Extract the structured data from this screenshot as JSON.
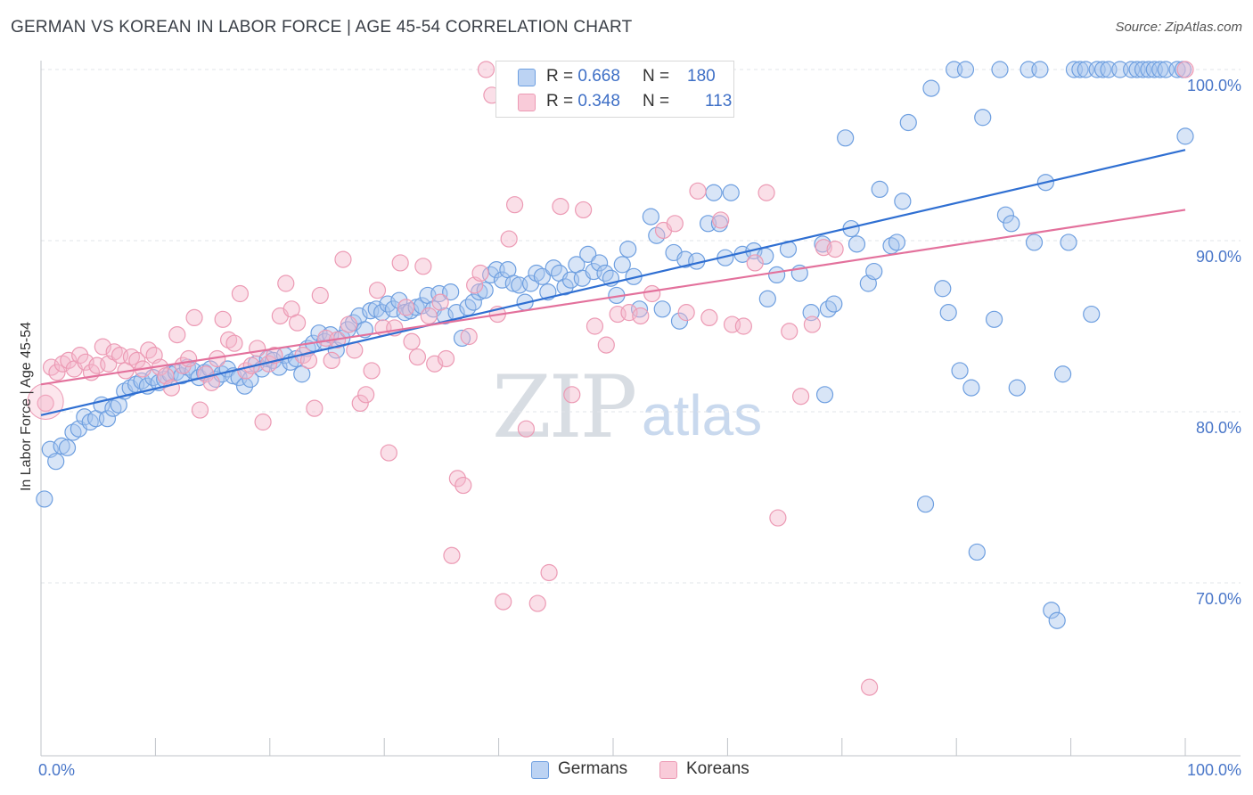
{
  "title": "GERMAN VS KOREAN IN LABOR FORCE | AGE 45-54 CORRELATION CHART",
  "source": "Source: ZipAtlas.com",
  "watermark": {
    "zip": "ZIP",
    "atlas": "atlas"
  },
  "legend": {
    "r_label": "R =",
    "n_label": "N =",
    "germans": {
      "r": "0.668",
      "n": "180",
      "color": "#a9c6ee"
    },
    "koreans": {
      "r": "0.348",
      "n": "113",
      "color": "#f5b8cb"
    }
  },
  "bottom_legend": {
    "germans": "Germans",
    "koreans": "Koreans"
  },
  "chart_data": {
    "type": "scatter",
    "xlabel": "",
    "ylabel": "In Labor Force | Age 45-54",
    "x_tick_labels": [
      "0.0%",
      "100.0%"
    ],
    "y_tick_labels": [
      "70.0%",
      "80.0%",
      "90.0%",
      "100.0%"
    ],
    "y_ticks": [
      70,
      80,
      90,
      100
    ],
    "xlim": [
      0,
      100
    ],
    "ylim": [
      60,
      100
    ],
    "grid": true,
    "legend_position": "top-center",
    "series": [
      {
        "name": "Germans",
        "color": "#6e9fe0",
        "fill": "#a9c6ee",
        "trend": {
          "x": [
            0,
            100
          ],
          "y": [
            79.8,
            95.3
          ],
          "color": "#2f6fd2"
        },
        "points": [
          [
            0.3,
            74.9
          ],
          [
            0.8,
            77.8
          ],
          [
            1.3,
            77.1
          ],
          [
            1.8,
            78.0
          ],
          [
            2.3,
            77.9
          ],
          [
            2.8,
            78.8
          ],
          [
            3.3,
            79.0
          ],
          [
            3.8,
            79.7
          ],
          [
            4.3,
            79.4
          ],
          [
            4.8,
            79.6
          ],
          [
            5.3,
            80.4
          ],
          [
            5.8,
            79.6
          ],
          [
            6.3,
            80.2
          ],
          [
            6.8,
            80.4
          ],
          [
            7.3,
            81.2
          ],
          [
            7.8,
            81.4
          ],
          [
            8.3,
            81.6
          ],
          [
            8.8,
            81.8
          ],
          [
            9.3,
            81.5
          ],
          [
            9.8,
            82.0
          ],
          [
            10.3,
            81.7
          ],
          [
            10.8,
            81.9
          ],
          [
            11.3,
            82.2
          ],
          [
            11.8,
            82.3
          ],
          [
            12.3,
            82.1
          ],
          [
            12.8,
            82.6
          ],
          [
            13.3,
            82.4
          ],
          [
            13.8,
            82.0
          ],
          [
            14.3,
            82.3
          ],
          [
            14.8,
            82.5
          ],
          [
            15.3,
            81.9
          ],
          [
            15.8,
            82.2
          ],
          [
            16.3,
            82.5
          ],
          [
            16.8,
            82.1
          ],
          [
            17.3,
            82.0
          ],
          [
            17.8,
            81.5
          ],
          [
            18.3,
            81.9
          ],
          [
            18.8,
            82.8
          ],
          [
            19.3,
            82.5
          ],
          [
            19.8,
            83.1
          ],
          [
            20.3,
            83.0
          ],
          [
            20.8,
            82.6
          ],
          [
            21.3,
            83.3
          ],
          [
            21.8,
            82.9
          ],
          [
            22.3,
            83.1
          ],
          [
            22.8,
            82.2
          ],
          [
            23.3,
            83.7
          ],
          [
            23.8,
            84.0
          ],
          [
            24.3,
            84.6
          ],
          [
            24.8,
            84.1
          ],
          [
            25.3,
            84.5
          ],
          [
            25.8,
            83.6
          ],
          [
            26.3,
            84.3
          ],
          [
            26.8,
            84.8
          ],
          [
            27.3,
            85.2
          ],
          [
            27.8,
            85.6
          ],
          [
            28.3,
            84.8
          ],
          [
            28.8,
            85.9
          ],
          [
            29.3,
            86.0
          ],
          [
            29.8,
            85.8
          ],
          [
            30.3,
            86.3
          ],
          [
            30.8,
            86.0
          ],
          [
            31.3,
            86.5
          ],
          [
            31.8,
            85.8
          ],
          [
            32.3,
            85.9
          ],
          [
            32.8,
            86.1
          ],
          [
            33.3,
            86.2
          ],
          [
            33.8,
            86.8
          ],
          [
            34.3,
            86.0
          ],
          [
            34.8,
            86.9
          ],
          [
            35.3,
            85.6
          ],
          [
            35.8,
            87.0
          ],
          [
            36.3,
            85.8
          ],
          [
            36.8,
            84.3
          ],
          [
            37.3,
            86.1
          ],
          [
            37.8,
            86.4
          ],
          [
            38.3,
            87.0
          ],
          [
            38.8,
            87.1
          ],
          [
            39.3,
            88.0
          ],
          [
            39.8,
            88.3
          ],
          [
            40.3,
            87.7
          ],
          [
            40.8,
            88.3
          ],
          [
            41.3,
            87.5
          ],
          [
            41.8,
            87.4
          ],
          [
            42.3,
            86.4
          ],
          [
            42.8,
            87.5
          ],
          [
            43.3,
            88.1
          ],
          [
            43.8,
            87.9
          ],
          [
            44.3,
            87.0
          ],
          [
            44.8,
            88.4
          ],
          [
            45.3,
            88.1
          ],
          [
            45.8,
            87.3
          ],
          [
            46.3,
            87.7
          ],
          [
            46.8,
            88.6
          ],
          [
            47.3,
            87.8
          ],
          [
            47.8,
            89.2
          ],
          [
            48.3,
            88.2
          ],
          [
            48.8,
            88.7
          ],
          [
            49.3,
            88.1
          ],
          [
            49.8,
            87.8
          ],
          [
            50.3,
            86.8
          ],
          [
            50.8,
            88.6
          ],
          [
            51.3,
            89.5
          ],
          [
            51.8,
            87.9
          ],
          [
            52.3,
            86.0
          ],
          [
            53.3,
            91.4
          ],
          [
            53.8,
            90.3
          ],
          [
            54.3,
            86.0
          ],
          [
            55.3,
            89.3
          ],
          [
            55.8,
            85.3
          ],
          [
            56.3,
            88.9
          ],
          [
            57.3,
            88.8
          ],
          [
            58.3,
            91.0
          ],
          [
            58.8,
            92.8
          ],
          [
            59.3,
            91.0
          ],
          [
            59.8,
            89.0
          ],
          [
            60.3,
            92.8
          ],
          [
            61.3,
            89.2
          ],
          [
            62.3,
            89.4
          ],
          [
            63.3,
            89.1
          ],
          [
            64.3,
            88.0
          ],
          [
            65.3,
            89.5
          ],
          [
            66.3,
            88.1
          ],
          [
            67.3,
            85.8
          ],
          [
            68.3,
            89.8
          ],
          [
            68.8,
            86.0
          ],
          [
            69.3,
            86.3
          ],
          [
            70.3,
            96.0
          ],
          [
            70.8,
            90.7
          ],
          [
            71.3,
            89.8
          ],
          [
            72.3,
            87.5
          ],
          [
            72.8,
            88.2
          ],
          [
            73.3,
            93.0
          ],
          [
            74.3,
            89.7
          ],
          [
            74.8,
            89.9
          ],
          [
            75.3,
            92.3
          ],
          [
            75.8,
            96.9
          ],
          [
            77.3,
            74.6
          ],
          [
            77.8,
            98.9
          ],
          [
            78.8,
            87.2
          ],
          [
            79.3,
            85.8
          ],
          [
            79.8,
            100
          ],
          [
            80.3,
            82.4
          ],
          [
            80.8,
            100
          ],
          [
            81.3,
            81.4
          ],
          [
            81.8,
            71.8
          ],
          [
            82.3,
            97.2
          ],
          [
            83.3,
            85.4
          ],
          [
            83.8,
            100
          ],
          [
            84.3,
            91.5
          ],
          [
            84.8,
            91.0
          ],
          [
            85.3,
            81.4
          ],
          [
            86.3,
            100
          ],
          [
            86.8,
            89.9
          ],
          [
            87.3,
            100
          ],
          [
            87.8,
            93.4
          ],
          [
            88.3,
            68.4
          ],
          [
            88.8,
            67.8
          ],
          [
            89.3,
            82.2
          ],
          [
            89.8,
            89.9
          ],
          [
            90.3,
            100
          ],
          [
            90.8,
            100
          ],
          [
            91.3,
            100
          ],
          [
            91.8,
            85.7
          ],
          [
            92.3,
            100
          ],
          [
            92.8,
            100
          ],
          [
            93.3,
            100
          ],
          [
            94.3,
            100
          ],
          [
            95.3,
            100
          ],
          [
            95.8,
            100
          ],
          [
            96.3,
            100
          ],
          [
            96.8,
            100
          ],
          [
            97.3,
            100
          ],
          [
            97.8,
            100
          ],
          [
            98.3,
            100
          ],
          [
            99.3,
            100
          ],
          [
            99.8,
            100
          ],
          [
            100.0,
            96.1
          ],
          [
            68.5,
            81.0
          ],
          [
            63.5,
            86.6
          ]
        ]
      },
      {
        "name": "Koreans",
        "color": "#ec9ab4",
        "fill": "#f5b8cb",
        "trend": {
          "x": [
            0,
            100
          ],
          "y": [
            81.6,
            91.8
          ],
          "color": "#e3719c"
        },
        "points": [
          [
            0.4,
            80.5
          ],
          [
            0.9,
            82.6
          ],
          [
            1.4,
            82.3
          ],
          [
            1.9,
            82.8
          ],
          [
            2.4,
            83.0
          ],
          [
            2.9,
            82.5
          ],
          [
            3.4,
            83.3
          ],
          [
            3.9,
            82.9
          ],
          [
            4.4,
            82.3
          ],
          [
            4.9,
            82.7
          ],
          [
            5.4,
            83.8
          ],
          [
            5.9,
            82.8
          ],
          [
            6.4,
            83.5
          ],
          [
            6.9,
            83.3
          ],
          [
            7.4,
            82.4
          ],
          [
            7.9,
            83.2
          ],
          [
            8.4,
            83.0
          ],
          [
            8.9,
            82.5
          ],
          [
            9.4,
            83.6
          ],
          [
            9.9,
            83.3
          ],
          [
            10.4,
            82.6
          ],
          [
            10.9,
            82.1
          ],
          [
            11.4,
            81.4
          ],
          [
            11.9,
            84.5
          ],
          [
            12.4,
            82.7
          ],
          [
            12.9,
            83.1
          ],
          [
            13.4,
            85.5
          ],
          [
            13.9,
            80.1
          ],
          [
            14.4,
            82.2
          ],
          [
            14.9,
            81.7
          ],
          [
            15.4,
            83.1
          ],
          [
            15.9,
            85.4
          ],
          [
            16.4,
            84.2
          ],
          [
            16.9,
            84.0
          ],
          [
            17.4,
            86.9
          ],
          [
            17.9,
            82.4
          ],
          [
            18.4,
            82.7
          ],
          [
            18.9,
            83.7
          ],
          [
            19.4,
            79.4
          ],
          [
            19.9,
            82.8
          ],
          [
            20.4,
            83.3
          ],
          [
            20.9,
            85.6
          ],
          [
            21.4,
            87.5
          ],
          [
            21.9,
            86.0
          ],
          [
            22.4,
            85.2
          ],
          [
            22.9,
            83.3
          ],
          [
            23.4,
            83.0
          ],
          [
            23.9,
            80.2
          ],
          [
            24.4,
            86.8
          ],
          [
            24.9,
            84.3
          ],
          [
            25.4,
            83.0
          ],
          [
            25.9,
            84.2
          ],
          [
            26.4,
            88.9
          ],
          [
            26.9,
            85.1
          ],
          [
            27.4,
            83.6
          ],
          [
            27.9,
            80.5
          ],
          [
            28.4,
            81.0
          ],
          [
            28.9,
            82.4
          ],
          [
            29.4,
            87.1
          ],
          [
            29.9,
            84.9
          ],
          [
            30.4,
            77.6
          ],
          [
            30.9,
            84.9
          ],
          [
            31.4,
            88.7
          ],
          [
            31.9,
            86.1
          ],
          [
            32.4,
            84.1
          ],
          [
            32.9,
            83.2
          ],
          [
            33.4,
            88.5
          ],
          [
            33.9,
            85.6
          ],
          [
            34.4,
            82.8
          ],
          [
            34.9,
            86.4
          ],
          [
            35.4,
            83.1
          ],
          [
            35.9,
            71.6
          ],
          [
            36.4,
            76.1
          ],
          [
            36.9,
            75.7
          ],
          [
            37.4,
            84.4
          ],
          [
            37.9,
            87.4
          ],
          [
            38.4,
            88.1
          ],
          [
            38.9,
            100
          ],
          [
            39.4,
            98.5
          ],
          [
            39.9,
            85.7
          ],
          [
            40.4,
            68.9
          ],
          [
            40.9,
            90.1
          ],
          [
            41.4,
            92.1
          ],
          [
            42.4,
            79.0
          ],
          [
            43.4,
            68.8
          ],
          [
            44.4,
            70.6
          ],
          [
            45.4,
            92.0
          ],
          [
            46.4,
            81.0
          ],
          [
            47.4,
            91.8
          ],
          [
            48.4,
            85.0
          ],
          [
            49.4,
            83.9
          ],
          [
            50.4,
            85.7
          ],
          [
            51.4,
            85.8
          ],
          [
            52.4,
            85.6
          ],
          [
            53.4,
            86.9
          ],
          [
            54.4,
            90.6
          ],
          [
            55.4,
            91.0
          ],
          [
            56.4,
            85.8
          ],
          [
            57.4,
            92.9
          ],
          [
            58.4,
            85.5
          ],
          [
            59.4,
            91.2
          ],
          [
            60.4,
            85.1
          ],
          [
            61.4,
            85.0
          ],
          [
            62.4,
            88.7
          ],
          [
            63.4,
            92.8
          ],
          [
            64.4,
            73.8
          ],
          [
            65.4,
            84.7
          ],
          [
            66.4,
            80.9
          ],
          [
            67.4,
            85.1
          ],
          [
            68.4,
            89.6
          ],
          [
            69.4,
            89.5
          ],
          [
            72.4,
            63.9
          ],
          [
            100.0,
            100
          ]
        ]
      }
    ]
  }
}
